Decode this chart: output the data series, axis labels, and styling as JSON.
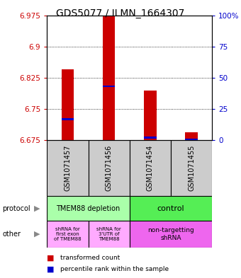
{
  "title": "GDS5077 / ILMN_1664307",
  "samples": [
    "GSM1071457",
    "GSM1071456",
    "GSM1071454",
    "GSM1071455"
  ],
  "red_values": [
    6.845,
    6.975,
    6.795,
    6.695
  ],
  "blue_values": [
    6.726,
    6.805,
    6.682,
    6.677
  ],
  "red_base": 6.675,
  "ylim_min": 6.675,
  "ylim_max": 6.975,
  "yticks_left": [
    6.675,
    6.75,
    6.825,
    6.9,
    6.975
  ],
  "yticks_right": [
    0,
    25,
    50,
    75,
    100
  ],
  "bar_width": 0.3,
  "red_color": "#cc0000",
  "blue_color": "#0000cc",
  "protocol_labels": [
    "TMEM88 depletion",
    "control"
  ],
  "protocol_colors": [
    "#aaffaa",
    "#55ee55"
  ],
  "other_labels": [
    "shRNA for\nfirst exon\nof TMEM88",
    "shRNA for\n3'UTR of\nTMEM88",
    "non-targetting\nshRNA"
  ],
  "other_colors": [
    "#ffaaff",
    "#ffaaff",
    "#ee66ee"
  ],
  "label_color_left": "#cc0000",
  "label_color_right": "#0000cc",
  "bg_color": "#ffffff",
  "tick_fontsize": 7.5,
  "sample_fontsize": 7,
  "title_fontsize": 10
}
